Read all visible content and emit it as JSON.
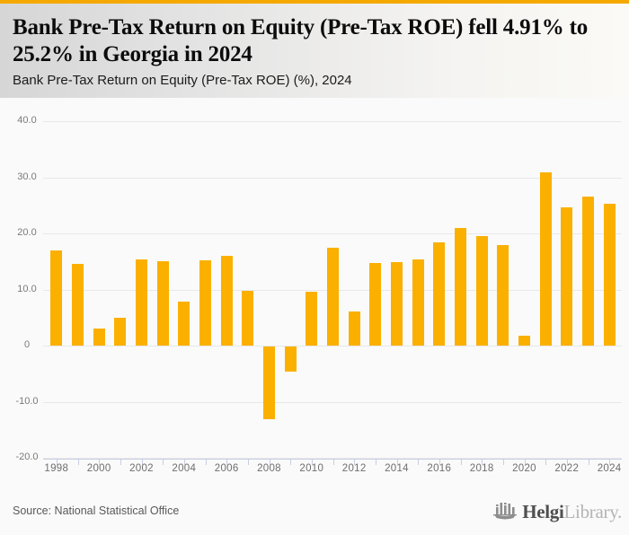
{
  "header": {
    "title": "Bank Pre-Tax Return on Equity (Pre-Tax ROE) fell 4.91% to 25.2% in Georgia in 2024",
    "subtitle": "Bank Pre-Tax Return on Equity (Pre-Tax ROE) (%), 2024"
  },
  "chart_data": {
    "type": "bar",
    "title": "Bank Pre-Tax Return on Equity (Pre-Tax ROE) fell 4.91% to 25.2% in Georgia in 2024",
    "subtitle": "Bank Pre-Tax Return on Equity (Pre-Tax ROE) (%), 2024",
    "categories": [
      1998,
      1999,
      2000,
      2001,
      2002,
      2003,
      2004,
      2005,
      2006,
      2007,
      2008,
      2009,
      2010,
      2011,
      2012,
      2013,
      2014,
      2015,
      2016,
      2017,
      2018,
      2019,
      2020,
      2021,
      2022,
      2023,
      2024
    ],
    "values": [
      16.9,
      14.6,
      3.0,
      5.0,
      15.3,
      15.1,
      7.9,
      15.2,
      16.0,
      9.8,
      -12.9,
      -4.4,
      9.6,
      17.4,
      6.0,
      14.7,
      14.8,
      15.3,
      18.4,
      20.9,
      19.5,
      17.9,
      1.8,
      30.8,
      24.7,
      26.5,
      25.2
    ],
    "xlabel": "",
    "ylabel": "",
    "ylim": [
      -20,
      40
    ],
    "yticks": [
      40,
      30,
      20,
      10,
      0,
      -10,
      -20
    ],
    "ytick_labels": [
      "40.0",
      "30.0",
      "20.0",
      "10.0",
      "0",
      "-10.0",
      "-20.0"
    ],
    "xtick_labels": [
      "1998",
      "2000",
      "2002",
      "2004",
      "2006",
      "2008",
      "2010",
      "2012",
      "2014",
      "2016",
      "2018",
      "2020",
      "2022",
      "2024"
    ],
    "grid": true,
    "legend_position": "none",
    "bar_color": "#FBB000"
  },
  "footer": {
    "source": "Source: National Statistical Office",
    "logo_primary": "Helgi",
    "logo_secondary": "Library."
  },
  "colors": {
    "accent_bar": "#F5A900",
    "bar": "#FBB000",
    "gridline": "#e8e8e8",
    "axis": "#c7cde4",
    "logo_icon": "#8d8d8d"
  }
}
